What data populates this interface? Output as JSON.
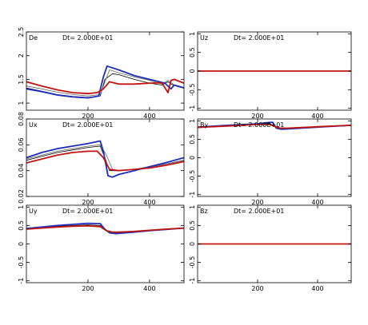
{
  "figure": {
    "layout": "3x2 panel grid",
    "series_colors": [
      "#000000",
      "#666666",
      "#1b2fbf",
      "#c0150f"
    ]
  },
  "chart_data": [
    {
      "type": "line",
      "label": "De",
      "annotation": "Dt= 2.000E+01",
      "xlim": [
        0,
        512
      ],
      "ylim": [
        0.85,
        2.5
      ],
      "xticks": [
        200,
        400
      ],
      "yticks": [
        {
          "v": 1,
          "t": "1"
        },
        {
          "v": 1.5,
          "t": "1.5"
        },
        {
          "v": 2,
          "t": "2"
        },
        {
          "v": 2.5,
          "t": "2.5"
        }
      ],
      "series": [
        {
          "color": "#000000",
          "x": [
            0,
            50,
            100,
            150,
            200,
            240,
            255,
            280,
            300,
            350,
            400,
            440,
            460,
            470,
            490,
            512
          ],
          "y": [
            1.32,
            1.25,
            1.18,
            1.14,
            1.12,
            1.15,
            1.5,
            1.62,
            1.6,
            1.5,
            1.42,
            1.38,
            1.45,
            1.4,
            1.35,
            1.32
          ]
        },
        {
          "color": "#666666",
          "x": [
            0,
            50,
            100,
            150,
            200,
            240,
            270,
            300,
            350,
            400,
            440,
            460,
            480,
            512
          ],
          "y": [
            1.36,
            1.3,
            1.23,
            1.18,
            1.15,
            1.18,
            1.7,
            1.64,
            1.55,
            1.48,
            1.4,
            1.48,
            1.38,
            1.33
          ]
        },
        {
          "color": "#1b2fbf",
          "x": [
            0,
            50,
            100,
            150,
            200,
            235,
            250,
            262,
            300,
            350,
            400,
            450,
            470,
            480,
            512
          ],
          "y": [
            1.3,
            1.24,
            1.17,
            1.13,
            1.11,
            1.15,
            1.55,
            1.78,
            1.7,
            1.58,
            1.5,
            1.42,
            1.3,
            1.38,
            1.32
          ]
        },
        {
          "color": "#c0150f",
          "x": [
            0,
            50,
            100,
            150,
            200,
            230,
            250,
            270,
            300,
            350,
            400,
            440,
            460,
            470,
            480,
            512
          ],
          "y": [
            1.45,
            1.36,
            1.28,
            1.22,
            1.2,
            1.22,
            1.3,
            1.45,
            1.4,
            1.4,
            1.42,
            1.43,
            1.22,
            1.48,
            1.5,
            1.42
          ]
        }
      ]
    },
    {
      "type": "line",
      "label": "Uz",
      "annotation": "Dt= 2.000E+01",
      "xlim": [
        0,
        512
      ],
      "ylim": [
        -1.05,
        1.05
      ],
      "xticks": [
        200,
        400
      ],
      "yticks": [
        {
          "v": -1,
          "t": "-1"
        },
        {
          "v": -0.5,
          "t": "-0.5"
        },
        {
          "v": 0,
          "t": "0"
        },
        {
          "v": 0.5,
          "t": "0.5"
        },
        {
          "v": 1,
          "t": "1"
        }
      ],
      "series": [
        {
          "color": "#000000",
          "x": [
            0,
            512
          ],
          "y": [
            0,
            0
          ]
        },
        {
          "color": "#c0150f",
          "x": [
            0,
            512
          ],
          "y": [
            0,
            0
          ]
        }
      ]
    },
    {
      "type": "line",
      "label": "Ux",
      "annotation": "Dt= 2.000E+01",
      "xlim": [
        0,
        512
      ],
      "ylim": [
        0.02,
        0.08
      ],
      "xticks": [
        200,
        400
      ],
      "yticks": [
        {
          "v": 0.02,
          "t": "0.02"
        },
        {
          "v": 0.04,
          "t": "0.04"
        },
        {
          "v": 0.06,
          "t": "0.06"
        },
        {
          "v": 0.08,
          "t": "0.08"
        }
      ],
      "series": [
        {
          "color": "#000000",
          "x": [
            0,
            50,
            100,
            150,
            200,
            240,
            255,
            270,
            300,
            350,
            400,
            450,
            512
          ],
          "y": [
            0.048,
            0.051,
            0.054,
            0.056,
            0.058,
            0.059,
            0.05,
            0.04,
            0.04,
            0.041,
            0.043,
            0.045,
            0.048
          ]
        },
        {
          "color": "#666666",
          "x": [
            0,
            50,
            100,
            150,
            200,
            240,
            260,
            280,
            300,
            350,
            400,
            450,
            512
          ],
          "y": [
            0.049,
            0.052,
            0.055,
            0.057,
            0.059,
            0.06,
            0.052,
            0.041,
            0.04,
            0.041,
            0.043,
            0.045,
            0.048
          ]
        },
        {
          "color": "#1b2fbf",
          "x": [
            0,
            50,
            100,
            150,
            200,
            240,
            250,
            265,
            280,
            300,
            350,
            400,
            450,
            512
          ],
          "y": [
            0.05,
            0.054,
            0.057,
            0.059,
            0.061,
            0.063,
            0.055,
            0.036,
            0.035,
            0.037,
            0.04,
            0.043,
            0.046,
            0.05
          ]
        },
        {
          "color": "#c0150f",
          "x": [
            0,
            50,
            100,
            150,
            200,
            230,
            250,
            270,
            300,
            350,
            400,
            450,
            512
          ],
          "y": [
            0.046,
            0.049,
            0.052,
            0.054,
            0.055,
            0.055,
            0.05,
            0.041,
            0.04,
            0.041,
            0.042,
            0.044,
            0.047
          ]
        }
      ]
    },
    {
      "type": "line",
      "label": "By",
      "annotation": "Dt= 2.000E+01",
      "xlim": [
        0,
        512
      ],
      "ylim": [
        -1.05,
        1.05
      ],
      "xticks": [
        200,
        400
      ],
      "yticks": [
        {
          "v": -1,
          "t": "-1"
        },
        {
          "v": -0.5,
          "t": "-0.5"
        },
        {
          "v": 0,
          "t": "0"
        },
        {
          "v": 0.5,
          "t": "0.5"
        },
        {
          "v": 1,
          "t": "1"
        }
      ],
      "series": [
        {
          "color": "#000000",
          "x": [
            0,
            100,
            200,
            240,
            260,
            280,
            300,
            400,
            512
          ],
          "y": [
            0.82,
            0.87,
            0.91,
            0.93,
            0.83,
            0.78,
            0.79,
            0.83,
            0.87
          ]
        },
        {
          "color": "#1b2fbf",
          "x": [
            0,
            100,
            200,
            230,
            250,
            262,
            280,
            300,
            400,
            512
          ],
          "y": [
            0.83,
            0.88,
            0.92,
            0.95,
            0.96,
            0.8,
            0.77,
            0.78,
            0.83,
            0.88
          ]
        },
        {
          "color": "#c0150f",
          "x": [
            0,
            100,
            200,
            240,
            260,
            275,
            300,
            400,
            512
          ],
          "y": [
            0.82,
            0.86,
            0.9,
            0.9,
            0.84,
            0.8,
            0.8,
            0.84,
            0.88
          ]
        }
      ]
    },
    {
      "type": "line",
      "label": "Uy",
      "annotation": "Dt= 2.000E+01",
      "xlim": [
        0,
        512
      ],
      "ylim": [
        -1.05,
        1.05
      ],
      "xticks": [
        200,
        400
      ],
      "yticks": [
        {
          "v": -1,
          "t": "-1"
        },
        {
          "v": -0.5,
          "t": "-0.5"
        },
        {
          "v": 0,
          "t": "0"
        },
        {
          "v": 0.5,
          "t": "0.5"
        },
        {
          "v": 1,
          "t": "1"
        }
      ],
      "series": [
        {
          "color": "#000000",
          "x": [
            0,
            50,
            100,
            150,
            200,
            240,
            260,
            280,
            300,
            350,
            400,
            450,
            512
          ],
          "y": [
            0.42,
            0.45,
            0.48,
            0.5,
            0.52,
            0.5,
            0.35,
            0.3,
            0.31,
            0.33,
            0.36,
            0.39,
            0.43
          ]
        },
        {
          "color": "#1b2fbf",
          "x": [
            0,
            50,
            100,
            150,
            200,
            240,
            255,
            270,
            290,
            350,
            400,
            450,
            512
          ],
          "y": [
            0.42,
            0.46,
            0.5,
            0.53,
            0.56,
            0.55,
            0.4,
            0.3,
            0.28,
            0.32,
            0.36,
            0.39,
            0.43
          ]
        },
        {
          "color": "#c0150f",
          "x": [
            0,
            50,
            100,
            150,
            200,
            240,
            260,
            280,
            300,
            350,
            400,
            450,
            512
          ],
          "y": [
            0.4,
            0.43,
            0.46,
            0.48,
            0.49,
            0.47,
            0.36,
            0.32,
            0.32,
            0.34,
            0.37,
            0.4,
            0.43
          ]
        }
      ]
    },
    {
      "type": "line",
      "label": "Bz",
      "annotation": "Dt= 2.000E+01",
      "xlim": [
        0,
        512
      ],
      "ylim": [
        -1.05,
        1.05
      ],
      "xticks": [
        200,
        400
      ],
      "yticks": [
        {
          "v": -1,
          "t": "-1"
        },
        {
          "v": -0.5,
          "t": "-0.5"
        },
        {
          "v": 0,
          "t": "0"
        },
        {
          "v": 0.5,
          "t": "0.5"
        },
        {
          "v": 1,
          "t": "1"
        }
      ],
      "series": [
        {
          "color": "#000000",
          "x": [
            0,
            512
          ],
          "y": [
            0,
            0
          ]
        },
        {
          "color": "#c0150f",
          "x": [
            0,
            512
          ],
          "y": [
            0,
            0
          ]
        }
      ]
    }
  ]
}
